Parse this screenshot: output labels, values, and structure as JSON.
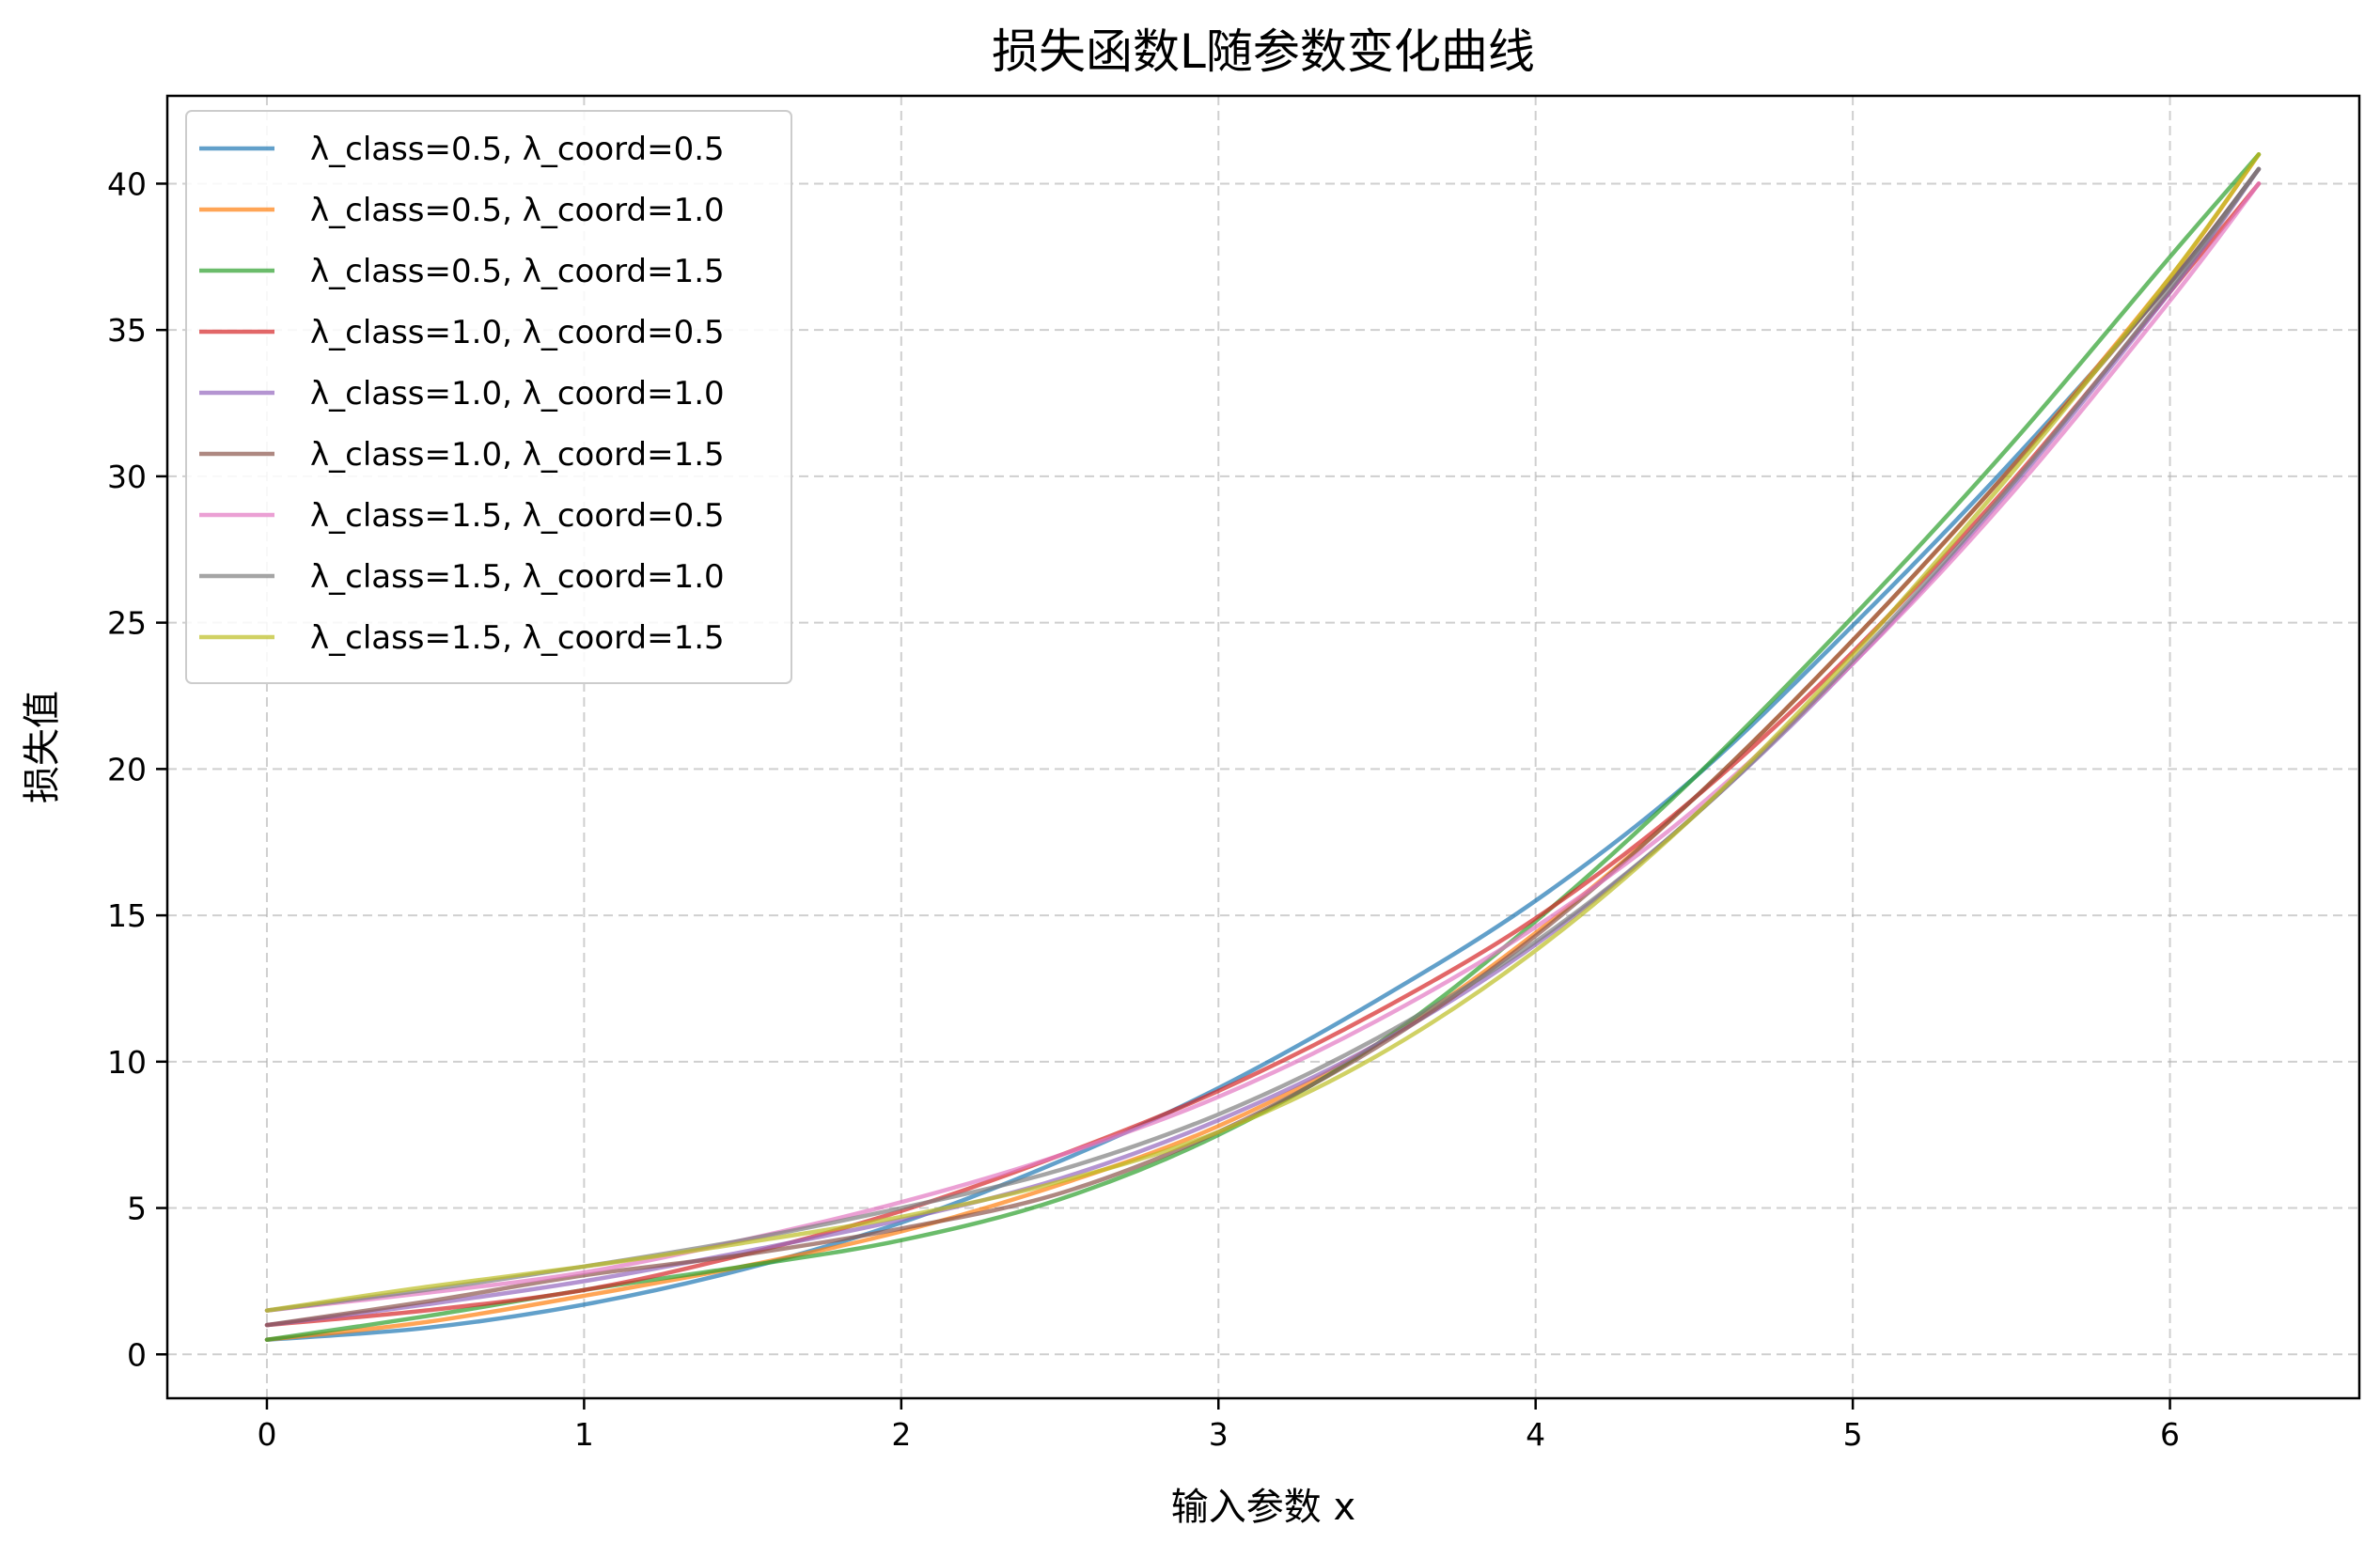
{
  "chart_data": {
    "type": "line",
    "title": "损失函数L随参数变化曲线",
    "xlabel": "输入参数 x",
    "ylabel": "损失值",
    "xlim": [
      -0.314,
      6.597
    ],
    "ylim": [
      -1.5,
      43
    ],
    "xticks": [
      0,
      1,
      2,
      3,
      4,
      5,
      6
    ],
    "yticks": [
      0,
      5,
      10,
      15,
      20,
      25,
      30,
      35,
      40
    ],
    "grid": true,
    "legend_position": "top-left",
    "x": [
      0,
      0.5,
      1,
      1.5,
      2,
      2.5,
      3,
      3.5,
      4,
      4.5,
      5,
      5.5,
      6,
      6.28
    ],
    "series": [
      {
        "name": "λ_class=0.5, λ_coord=0.5",
        "color": "#1f77b4",
        "values": [
          0.5,
          0.9,
          1.7,
          2.9,
          4.5,
          6.6,
          9.1,
          12.1,
          15.5,
          19.7,
          24.9,
          30.5,
          36.6,
          40.5
        ]
      },
      {
        "name": "λ_class=0.5, λ_coord=1.0",
        "color": "#ff7f0e",
        "values": [
          0.5,
          1.1,
          2.0,
          3.0,
          4.2,
          5.8,
          7.8,
          10.6,
          14.4,
          19.0,
          24.4,
          30.3,
          36.8,
          41.0
        ]
      },
      {
        "name": "λ_class=0.5, λ_coord=1.5",
        "color": "#2ca02c",
        "values": [
          0.5,
          1.3,
          2.2,
          3.0,
          3.9,
          5.3,
          7.5,
          10.6,
          14.8,
          19.7,
          25.2,
          31.1,
          37.5,
          41.0
        ]
      },
      {
        "name": "λ_class=1.0, λ_coord=0.5",
        "color": "#d62728",
        "values": [
          1.0,
          1.5,
          2.2,
          3.4,
          4.9,
          6.8,
          9.0,
          11.7,
          14.9,
          19.0,
          24.0,
          29.8,
          36.3,
          40.0
        ]
      },
      {
        "name": "λ_class=1.0, λ_coord=1.0",
        "color": "#9467bd",
        "values": [
          1.0,
          1.7,
          2.5,
          3.5,
          4.6,
          6.0,
          8.0,
          10.6,
          14.0,
          18.4,
          23.6,
          29.6,
          36.3,
          40.5
        ]
      },
      {
        "name": "λ_class=1.0, λ_coord=1.5",
        "color": "#8c564b",
        "values": [
          1.0,
          1.8,
          2.7,
          3.4,
          4.3,
          5.5,
          7.6,
          10.5,
          14.3,
          19.0,
          24.4,
          30.3,
          36.6,
          40.5
        ]
      },
      {
        "name": "λ_class=1.5, λ_coord=0.5",
        "color": "#e377c2",
        "values": [
          1.5,
          2.1,
          2.8,
          3.9,
          5.2,
          6.8,
          8.8,
          11.4,
          14.6,
          18.6,
          23.6,
          29.4,
          36.0,
          40.0
        ]
      },
      {
        "name": "λ_class=1.5, λ_coord=1.0",
        "color": "#7f7f7f",
        "values": [
          1.5,
          2.2,
          3.0,
          3.9,
          5.0,
          6.3,
          8.2,
          10.8,
          14.1,
          18.4,
          23.7,
          29.7,
          36.4,
          40.5
        ]
      },
      {
        "name": "λ_class=1.5, λ_coord=1.5",
        "color": "#bcbd22",
        "values": [
          1.5,
          2.3,
          3.0,
          3.8,
          4.7,
          5.9,
          7.6,
          10.2,
          13.8,
          18.4,
          23.9,
          30.1,
          36.8,
          41.0
        ]
      }
    ]
  }
}
